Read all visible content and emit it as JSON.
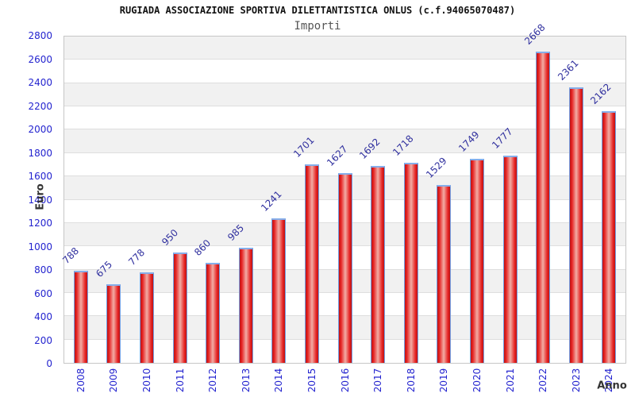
{
  "header": {
    "title": "RUGIADA ASSOCIAZIONE SPORTIVA DILETTANTISTICA ONLUS (c.f.94065070487)",
    "subtitle": "Importi"
  },
  "chart_data": {
    "type": "bar",
    "title": "RUGIADA ASSOCIAZIONE SPORTIVA DILETTANTISTICA ONLUS (c.f.94065070487)",
    "subtitle": "Importi",
    "xlabel": "Anno",
    "ylabel": "Euro",
    "categories": [
      "2008",
      "2009",
      "2010",
      "2011",
      "2012",
      "2013",
      "2014",
      "2015",
      "2016",
      "2017",
      "2018",
      "2019",
      "2020",
      "2021",
      "2022",
      "2023",
      "2024"
    ],
    "values": [
      788,
      675,
      778,
      950,
      860,
      985,
      1241,
      1701,
      1627,
      1692,
      1718,
      1529,
      1749,
      1777,
      2668,
      2361,
      2162
    ],
    "ylim": [
      0,
      2800
    ],
    "yticks": [
      0,
      200,
      400,
      600,
      800,
      1000,
      1200,
      1400,
      1600,
      1800,
      2000,
      2200,
      2400,
      2600,
      2800
    ],
    "grid": "horizontal-bands",
    "legend": "none",
    "colors": {
      "bar_fill": "#e62222",
      "bar_fill_dark": "#bc1414",
      "bar_fill_light": "#f2ada5",
      "bar_border": "#74a0e4",
      "value_label": "#31319f",
      "tick_label": "#2424cf",
      "band_alt": "#f1f1f1",
      "band_base": "#ffffff",
      "gridline": "#dedede",
      "axis_title": "#333333"
    }
  }
}
